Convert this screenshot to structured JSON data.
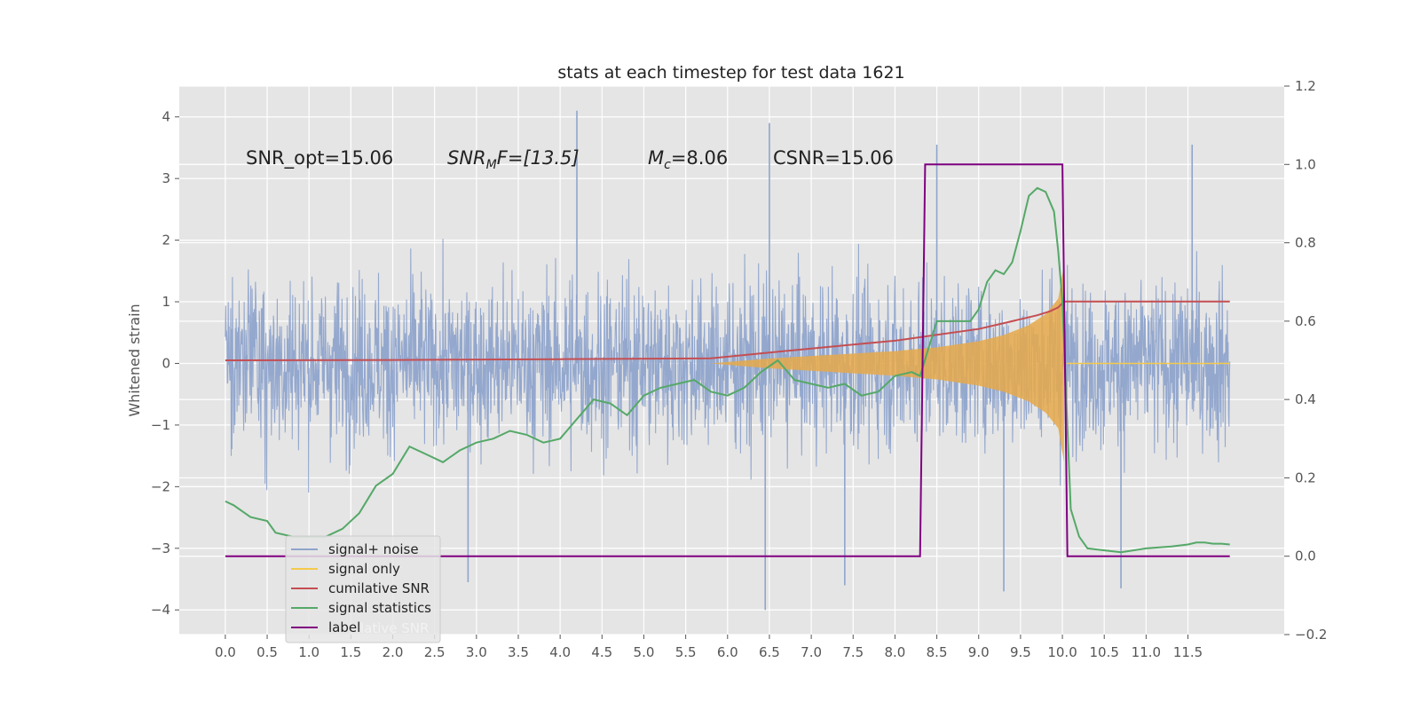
{
  "chart_data": {
    "type": "line",
    "title": "stats at each timestep for test data 1621",
    "ylabel": "Whitened strain",
    "xlabel": "",
    "xlim": [
      -0.55,
      12.65
    ],
    "ylim": [
      -4.4,
      4.5
    ],
    "y2lim": [
      -0.2,
      1.2
    ],
    "grid": true,
    "x_ticks": [
      "0.0",
      "0.5",
      "1.0",
      "1.5",
      "2.0",
      "2.5",
      "3.0",
      "3.5",
      "4.0",
      "4.5",
      "5.0",
      "5.5",
      "6.0",
      "6.5",
      "7.0",
      "7.5",
      "8.0",
      "8.5",
      "9.0",
      "9.5",
      "10.0",
      "10.5",
      "11.0",
      "11.5"
    ],
    "y_ticks": [
      "4",
      "3",
      "2",
      "1",
      "0",
      "−1",
      "−2",
      "−3",
      "−4"
    ],
    "y2_ticks": [
      "1.2",
      "1.0",
      "0.8",
      "0.6",
      "0.4",
      "0.2",
      "0.0",
      "−0.2"
    ],
    "annotations": {
      "snr_opt": "SNR_opt=15.06",
      "snr_mf_main": "SNR",
      "snr_mf_sub": "M",
      "snr_mf_tail": "F=[13.5]",
      "mc_main": "M",
      "mc_sub": "c",
      "mc_tail": "=8.06",
      "csnr": "CSNR=15.06"
    },
    "legend": {
      "placement": "lower-left",
      "entries": [
        {
          "label": "signal+ noise",
          "color": "#8fa4cc"
        },
        {
          "label": "signal only",
          "color": "#f5c94a"
        },
        {
          "label": "cumilative SNR",
          "color": "#c44e52"
        },
        {
          "label": "signal statistics",
          "color": "#55a868"
        },
        {
          "label": "label",
          "color": "#800080"
        }
      ],
      "ghost_text": "lative SNR"
    },
    "series": [
      {
        "name": "signal+ noise",
        "axis": "left",
        "style": "noise",
        "color": "#8fa4cc",
        "x_range": [
          0.0,
          12.0
        ],
        "envelope": [
          -2.0,
          2.0
        ],
        "peak_max": 4.1,
        "peak_min": -4.0
      },
      {
        "name": "signal only",
        "axis": "left",
        "style": "chirp",
        "color": "#e6a94a",
        "x": [
          5.8,
          6.5,
          7.0,
          7.5,
          8.0,
          8.5,
          9.0,
          9.3,
          9.6,
          9.8,
          9.95,
          10.02
        ],
        "amplitude": [
          0.0,
          0.08,
          0.12,
          0.16,
          0.2,
          0.26,
          0.36,
          0.46,
          0.62,
          0.8,
          1.05,
          1.6
        ]
      },
      {
        "name": "cumilative SNR",
        "axis": "right",
        "color": "#c44e52",
        "x": [
          0.0,
          2.0,
          4.0,
          5.8,
          6.5,
          7.0,
          7.5,
          8.0,
          8.5,
          9.0,
          9.3,
          9.5,
          9.7,
          9.85,
          9.95,
          10.02,
          10.05,
          12.0
        ],
        "y": [
          0.5,
          0.501,
          0.503,
          0.505,
          0.52,
          0.53,
          0.54,
          0.55,
          0.565,
          0.58,
          0.595,
          0.605,
          0.615,
          0.625,
          0.635,
          0.65,
          0.65,
          0.65
        ]
      },
      {
        "name": "signal statistics",
        "axis": "right",
        "color": "#55a868",
        "x": [
          0.0,
          0.1,
          0.3,
          0.5,
          0.6,
          0.8,
          1.0,
          1.2,
          1.4,
          1.6,
          1.8,
          2.0,
          2.2,
          2.4,
          2.6,
          2.8,
          3.0,
          3.2,
          3.4,
          3.6,
          3.8,
          4.0,
          4.2,
          4.4,
          4.6,
          4.8,
          5.0,
          5.2,
          5.4,
          5.6,
          5.8,
          6.0,
          6.2,
          6.4,
          6.6,
          6.8,
          7.0,
          7.2,
          7.4,
          7.6,
          7.8,
          8.0,
          8.2,
          8.3,
          8.4,
          8.5,
          8.7,
          8.9,
          9.0,
          9.1,
          9.2,
          9.3,
          9.4,
          9.5,
          9.6,
          9.7,
          9.8,
          9.9,
          9.95,
          10.0,
          10.05,
          10.1,
          10.2,
          10.3,
          10.5,
          10.7,
          11.0,
          11.3,
          11.5,
          11.6,
          11.7,
          11.8,
          11.9,
          12.0
        ],
        "y": [
          0.14,
          0.13,
          0.1,
          0.09,
          0.06,
          0.05,
          0.05,
          0.05,
          0.07,
          0.11,
          0.18,
          0.21,
          0.28,
          0.26,
          0.24,
          0.27,
          0.29,
          0.3,
          0.32,
          0.31,
          0.29,
          0.3,
          0.35,
          0.4,
          0.39,
          0.36,
          0.41,
          0.43,
          0.44,
          0.45,
          0.42,
          0.41,
          0.43,
          0.47,
          0.5,
          0.45,
          0.44,
          0.43,
          0.44,
          0.41,
          0.42,
          0.46,
          0.47,
          0.46,
          0.53,
          0.6,
          0.6,
          0.6,
          0.63,
          0.7,
          0.73,
          0.72,
          0.75,
          0.83,
          0.92,
          0.94,
          0.93,
          0.88,
          0.78,
          0.65,
          0.38,
          0.12,
          0.05,
          0.02,
          0.015,
          0.01,
          0.02,
          0.025,
          0.03,
          0.035,
          0.035,
          0.032,
          0.032,
          0.03
        ]
      },
      {
        "name": "label",
        "axis": "right",
        "color": "#800080",
        "x": [
          0.0,
          8.3,
          8.36,
          10.0,
          10.06,
          12.0
        ],
        "y": [
          0.0,
          0.0,
          1.0,
          1.0,
          0.0,
          0.0
        ]
      }
    ]
  }
}
